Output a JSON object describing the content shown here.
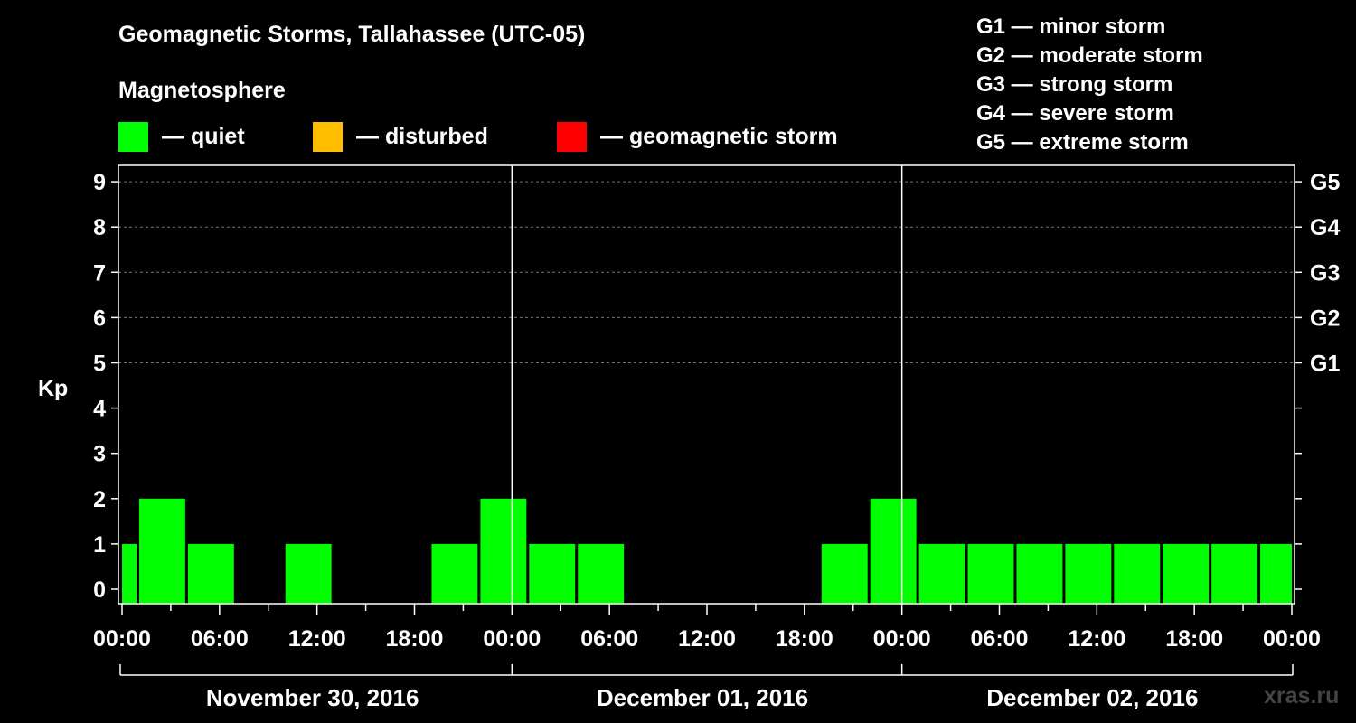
{
  "title": "Geomagnetic Storms, Tallahassee (UTC-05)",
  "legend": {
    "heading": "Magnetosphere",
    "items": [
      {
        "label": "— quiet",
        "color": "#00ff00"
      },
      {
        "label": "— disturbed",
        "color": "#ffbf00"
      },
      {
        "label": "— geomagnetic storm",
        "color": "#ff0000"
      }
    ]
  },
  "storm_levels": [
    "G1 — minor storm",
    "G2 — moderate storm",
    "G3 — strong storm",
    "G4 — severe storm",
    "G5 — extreme storm"
  ],
  "watermark": "xras.ru",
  "chart_data": {
    "type": "bar",
    "ylabel": "Kp",
    "ylim": [
      0,
      9
    ],
    "yticks": [
      "0",
      "1",
      "2",
      "3",
      "4",
      "5",
      "6",
      "7",
      "8",
      "9"
    ],
    "right_axis_labels": [
      {
        "kp": 5,
        "label": "G1"
      },
      {
        "kp": 6,
        "label": "G2"
      },
      {
        "kp": 7,
        "label": "G3"
      },
      {
        "kp": 8,
        "label": "G4"
      },
      {
        "kp": 9,
        "label": "G5"
      }
    ],
    "xlim_hours": [
      0,
      72
    ],
    "xticks": [
      {
        "hour": 0,
        "label": "00:00"
      },
      {
        "hour": 6,
        "label": "06:00"
      },
      {
        "hour": 12,
        "label": "12:00"
      },
      {
        "hour": 18,
        "label": "18:00"
      },
      {
        "hour": 24,
        "label": "00:00"
      },
      {
        "hour": 30,
        "label": "06:00"
      },
      {
        "hour": 36,
        "label": "12:00"
      },
      {
        "hour": 42,
        "label": "18:00"
      },
      {
        "hour": 48,
        "label": "00:00"
      },
      {
        "hour": 54,
        "label": "06:00"
      },
      {
        "hour": 60,
        "label": "12:00"
      },
      {
        "hour": 66,
        "label": "18:00"
      },
      {
        "hour": 72,
        "label": "00:00"
      }
    ],
    "dates": [
      "November 30, 2016",
      "December 01, 2016",
      "December 02, 2016"
    ],
    "grid": true,
    "bars": [
      {
        "start": 0,
        "end": 1,
        "kp": 1,
        "status": "quiet"
      },
      {
        "start": 1,
        "end": 4,
        "kp": 2,
        "status": "quiet"
      },
      {
        "start": 4,
        "end": 7,
        "kp": 1,
        "status": "quiet"
      },
      {
        "start": 7,
        "end": 10,
        "kp": 0,
        "status": "quiet"
      },
      {
        "start": 10,
        "end": 13,
        "kp": 1,
        "status": "quiet"
      },
      {
        "start": 13,
        "end": 16,
        "kp": 0,
        "status": "quiet"
      },
      {
        "start": 16,
        "end": 19,
        "kp": 0,
        "status": "quiet"
      },
      {
        "start": 19,
        "end": 22,
        "kp": 1,
        "status": "quiet"
      },
      {
        "start": 22,
        "end": 25,
        "kp": 2,
        "status": "quiet"
      },
      {
        "start": 25,
        "end": 28,
        "kp": 1,
        "status": "quiet"
      },
      {
        "start": 28,
        "end": 31,
        "kp": 1,
        "status": "quiet"
      },
      {
        "start": 31,
        "end": 34,
        "kp": 0,
        "status": "quiet"
      },
      {
        "start": 34,
        "end": 37,
        "kp": 0,
        "status": "quiet"
      },
      {
        "start": 37,
        "end": 40,
        "kp": 0,
        "status": "quiet"
      },
      {
        "start": 40,
        "end": 43,
        "kp": 0,
        "status": "quiet"
      },
      {
        "start": 43,
        "end": 46,
        "kp": 1,
        "status": "quiet"
      },
      {
        "start": 46,
        "end": 49,
        "kp": 2,
        "status": "quiet"
      },
      {
        "start": 49,
        "end": 52,
        "kp": 1,
        "status": "quiet"
      },
      {
        "start": 52,
        "end": 55,
        "kp": 1,
        "status": "quiet"
      },
      {
        "start": 55,
        "end": 58,
        "kp": 1,
        "status": "quiet"
      },
      {
        "start": 58,
        "end": 61,
        "kp": 1,
        "status": "quiet"
      },
      {
        "start": 61,
        "end": 64,
        "kp": 1,
        "status": "quiet"
      },
      {
        "start": 64,
        "end": 67,
        "kp": 1,
        "status": "quiet"
      },
      {
        "start": 67,
        "end": 70,
        "kp": 1,
        "status": "quiet"
      },
      {
        "start": 70,
        "end": 72,
        "kp": 1,
        "status": "quiet"
      }
    ]
  }
}
